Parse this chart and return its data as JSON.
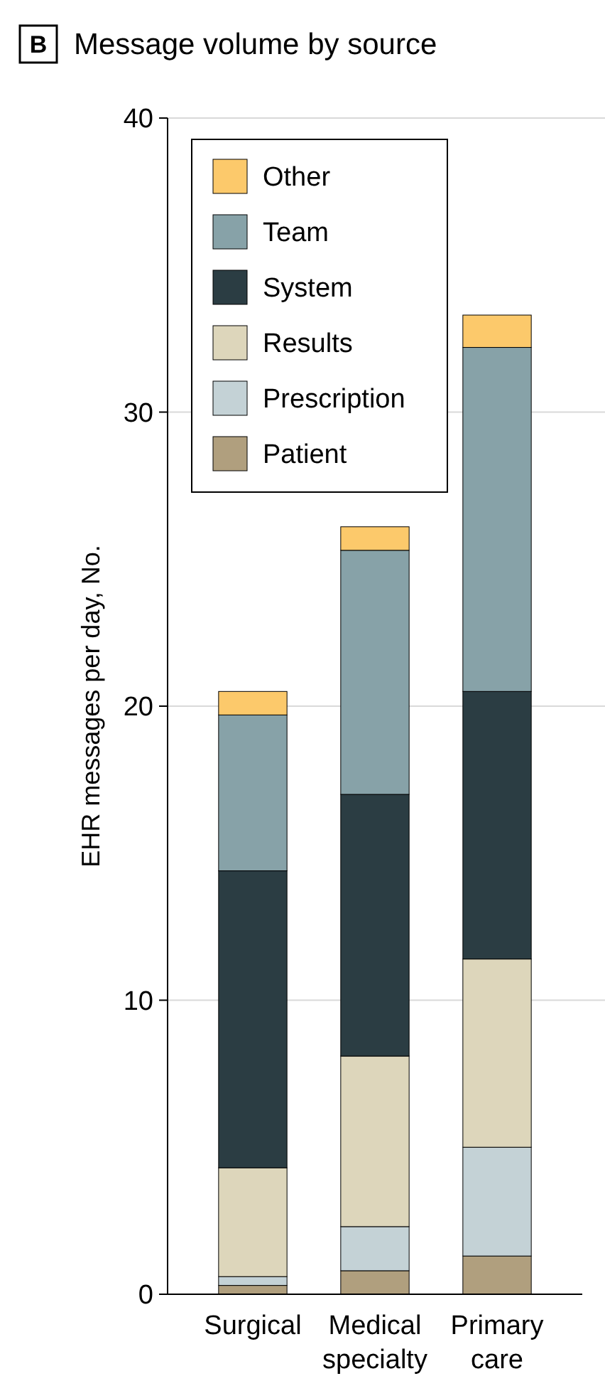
{
  "chart_data": {
    "type": "bar",
    "stacked": true,
    "title": "Message volume by source",
    "annotations": [
      "B"
    ],
    "ylabel": "EHR messages per day, No.",
    "categories": [
      "Surgical",
      "Medical specialty",
      "Primary care"
    ],
    "series": [
      {
        "name": "Patient",
        "color": "#b09f7e",
        "values": [
          0.3,
          0.8,
          1.3
        ]
      },
      {
        "name": "Prescription",
        "color": "#c4d2d6",
        "values": [
          0.3,
          1.5,
          3.7
        ]
      },
      {
        "name": "Results",
        "color": "#ddd6bb",
        "values": [
          3.7,
          5.8,
          6.4
        ]
      },
      {
        "name": "System",
        "color": "#2b3d43",
        "values": [
          10.1,
          8.9,
          9.1
        ]
      },
      {
        "name": "Team",
        "color": "#87a2a8",
        "values": [
          5.3,
          8.3,
          11.7
        ]
      },
      {
        "name": "Other",
        "color": "#fcc96b",
        "values": [
          0.8,
          0.8,
          1.1
        ]
      }
    ],
    "ylim": [
      0,
      40
    ],
    "yticks": [
      0,
      10,
      20,
      30,
      40
    ],
    "grid": "y",
    "legend": "top left"
  }
}
